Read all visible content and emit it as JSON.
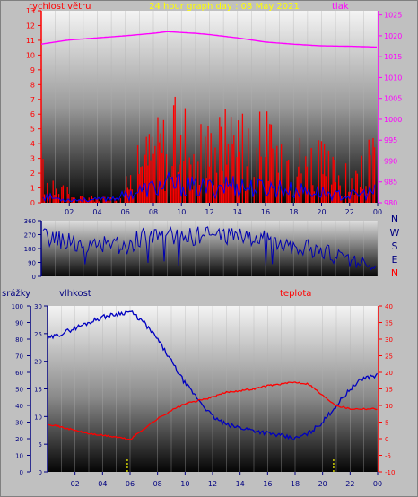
{
  "chart_data": [
    {
      "type": "line",
      "title": "24 hour graph day : 08 May 2021",
      "left_axis_label": "rychlost větru",
      "right_axis_label": "tlak",
      "x_tick_labels": [
        "02",
        "04",
        "06",
        "08",
        "10",
        "12",
        "14",
        "16",
        "18",
        "20",
        "22",
        "00"
      ],
      "left_ticks": [
        "0",
        "1",
        "2",
        "3",
        "4",
        "5",
        "6",
        "7",
        "8",
        "9",
        "10",
        "11",
        "12",
        "13"
      ],
      "right_ticks": [
        "980",
        "985",
        "990",
        "995",
        "1000",
        "1005",
        "1010",
        "1015",
        "1020",
        "1025"
      ],
      "ylim_left": [
        0,
        13
      ],
      "ylim_right": [
        980,
        1026
      ],
      "series": [
        {
          "name": "tlak",
          "color": "#ff00ff",
          "x": [
            0,
            2,
            4,
            6,
            8,
            9,
            10,
            11,
            12,
            14,
            16,
            18,
            20,
            22,
            24
          ],
          "values": [
            1018,
            1019,
            1019.5,
            1020,
            1020.6,
            1021,
            1020.8,
            1020.6,
            1020.3,
            1019.5,
            1018.5,
            1018,
            1017.6,
            1017.5,
            1017.3
          ]
        },
        {
          "name": "",
          "color": "#ff0000",
          "x": [
            0,
            1,
            2,
            3,
            4,
            5,
            6,
            7,
            8,
            9,
            10,
            11,
            12,
            13,
            14,
            15,
            16,
            17,
            18,
            19,
            20,
            21,
            22,
            23,
            24
          ],
          "values": [
            2,
            1.5,
            0.5,
            0.3,
            0.3,
            0.4,
            1,
            2.5,
            3.5,
            4,
            4.5,
            4,
            3.5,
            4,
            4.5,
            3.5,
            4,
            3.5,
            3,
            3,
            2.5,
            2,
            1.5,
            2,
            3.5
          ]
        },
        {
          "name": "",
          "color": "#0000ff",
          "x": [
            0,
            1,
            2,
            3,
            4,
            5,
            6,
            7,
            8,
            9,
            10,
            11,
            12,
            13,
            14,
            15,
            16,
            17,
            18,
            19,
            20,
            21,
            22,
            23,
            24
          ],
          "values": [
            0.5,
            0.3,
            0.2,
            0.2,
            0.2,
            0.3,
            0.5,
            0.8,
            1,
            1.2,
            1.2,
            1,
            1,
            1.2,
            1.2,
            1,
            1,
            1,
            0.8,
            0.8,
            0.7,
            0.5,
            0.5,
            0.6,
            0.8
          ]
        }
      ]
    },
    {
      "type": "line",
      "left_ticks": [
        "0",
        "90",
        "180",
        "270",
        "360"
      ],
      "direction_labels": [
        "N",
        "W",
        "S",
        "E",
        "N"
      ],
      "ylim": [
        0,
        360
      ],
      "series": [
        {
          "name": "",
          "color": "#0000b0",
          "x": [
            0,
            1,
            2,
            3,
            4,
            5,
            6,
            7,
            8,
            9,
            10,
            11,
            12,
            13,
            14,
            15,
            16,
            17,
            18,
            19,
            20,
            21,
            22,
            23,
            24
          ],
          "values": [
            260,
            240,
            230,
            200,
            180,
            230,
            180,
            250,
            260,
            270,
            250,
            260,
            270,
            260,
            280,
            240,
            240,
            230,
            200,
            180,
            160,
            130,
            110,
            100,
            95
          ]
        }
      ]
    },
    {
      "type": "line",
      "left_axis_label": "srážky",
      "mid_axis_label": "vlhkost",
      "right_axis_label": "teplota",
      "x_tick_labels": [
        "02",
        "04",
        "06",
        "08",
        "10",
        "12",
        "14",
        "16",
        "18",
        "20",
        "22",
        "00"
      ],
      "precip_ticks": [
        "0",
        "10",
        "20",
        "30",
        "40",
        "50",
        "60",
        "70",
        "80",
        "90",
        "100"
      ],
      "humidity_ticks": [
        "0",
        "5",
        "10",
        "15",
        "20",
        "25",
        "30"
      ],
      "temp_ticks": [
        "-10",
        "-5",
        "0",
        "5",
        "10",
        "15",
        "20",
        "25",
        "30",
        "35",
        "40"
      ],
      "precip_range": [
        0,
        100
      ],
      "humidity_range": [
        0,
        30
      ],
      "temp_range": [
        -10,
        40
      ],
      "series": [
        {
          "name": "vlhkost",
          "color": "#0000c0",
          "x": [
            0,
            1,
            2,
            3,
            4,
            5,
            6,
            7,
            8,
            9,
            10,
            11,
            12,
            13,
            14,
            15,
            16,
            17,
            18,
            19,
            20,
            21,
            22,
            23,
            24
          ],
          "values": [
            24,
            25,
            26,
            27,
            28,
            28.5,
            29,
            27,
            24,
            20,
            16,
            13,
            10,
            8.5,
            8,
            7.5,
            7,
            6.5,
            6,
            7,
            9,
            12,
            15,
            17,
            17.5
          ]
        },
        {
          "name": "teplota",
          "color": "#ff0000",
          "x": [
            0,
            1,
            2,
            3,
            4,
            5,
            6,
            7,
            8,
            9,
            10,
            11,
            12,
            13,
            14,
            15,
            16,
            17,
            18,
            19,
            20,
            21,
            22,
            23,
            24
          ],
          "values": [
            4.5,
            3.5,
            2.5,
            1.5,
            1,
            0.5,
            -0.3,
            3,
            6,
            8.5,
            10.5,
            11.5,
            12.5,
            14,
            14.5,
            15,
            16,
            16.5,
            17,
            16.5,
            13,
            10,
            9,
            9,
            9
          ]
        },
        {
          "name": "srážky",
          "color": "#ffff00",
          "x": [
            5.8,
            20.8
          ],
          "values": [
            0,
            0
          ]
        }
      ]
    }
  ]
}
